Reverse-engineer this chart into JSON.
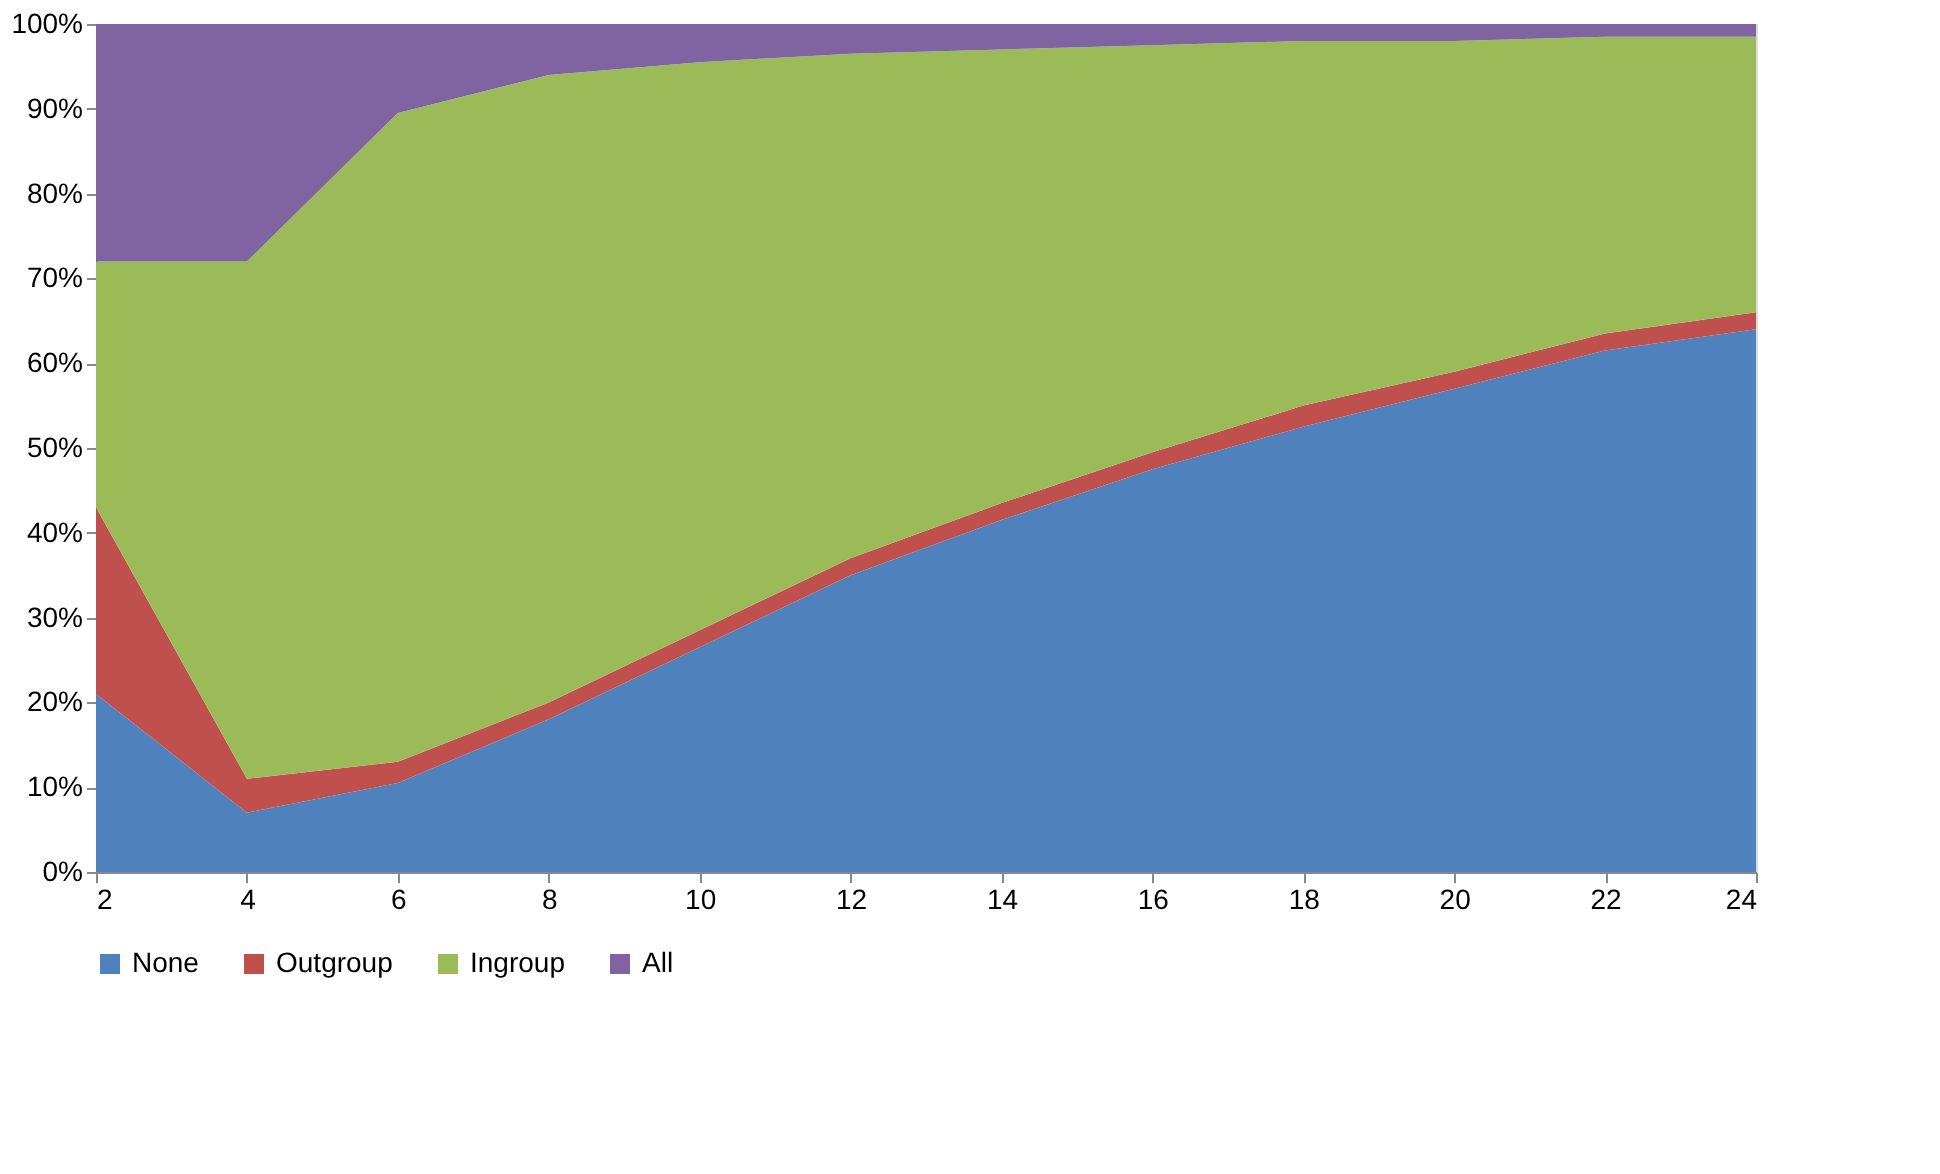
{
  "chart_data": {
    "type": "area",
    "stacked": true,
    "x": [
      2,
      4,
      6,
      8,
      10,
      12,
      14,
      16,
      18,
      20,
      22,
      24
    ],
    "series": [
      {
        "name": "None",
        "color": "#4f81bd",
        "values": [
          21,
          7,
          10.5,
          18,
          26.5,
          35,
          41.5,
          47.5,
          52.5,
          57,
          61.5,
          64
        ]
      },
      {
        "name": "Outgroup",
        "color": "#c0504d",
        "values": [
          22,
          4,
          2.5,
          2,
          2,
          2,
          2,
          2,
          2.5,
          2,
          2,
          2
        ]
      },
      {
        "name": "Ingroup",
        "color": "#9bbb59",
        "values": [
          29,
          61,
          76.5,
          74,
          67,
          59.5,
          53.5,
          48,
          43,
          39,
          35,
          32.5
        ]
      },
      {
        "name": "All",
        "color": "#8064a2",
        "values": [
          28,
          28,
          10.5,
          6,
          4.5,
          3.5,
          3,
          2.5,
          2,
          2,
          1.5,
          1.5
        ]
      }
    ],
    "xlim": [
      2,
      24
    ],
    "xticks": [
      2,
      4,
      6,
      8,
      10,
      12,
      14,
      16,
      18,
      20,
      22,
      24
    ],
    "ylim": [
      0,
      100
    ],
    "yticks": [
      {
        "value": 0,
        "label": "0%"
      },
      {
        "value": 10,
        "label": "10%"
      },
      {
        "value": 20,
        "label": "20%"
      },
      {
        "value": 30,
        "label": "30%"
      },
      {
        "value": 40,
        "label": "40%"
      },
      {
        "value": 50,
        "label": "50%"
      },
      {
        "value": 60,
        "label": "60%"
      },
      {
        "value": 70,
        "label": "70%"
      },
      {
        "value": 80,
        "label": "80%"
      },
      {
        "value": 90,
        "label": "90%"
      },
      {
        "value": 100,
        "label": "100%"
      }
    ],
    "grid": false,
    "legend": "bottom"
  }
}
